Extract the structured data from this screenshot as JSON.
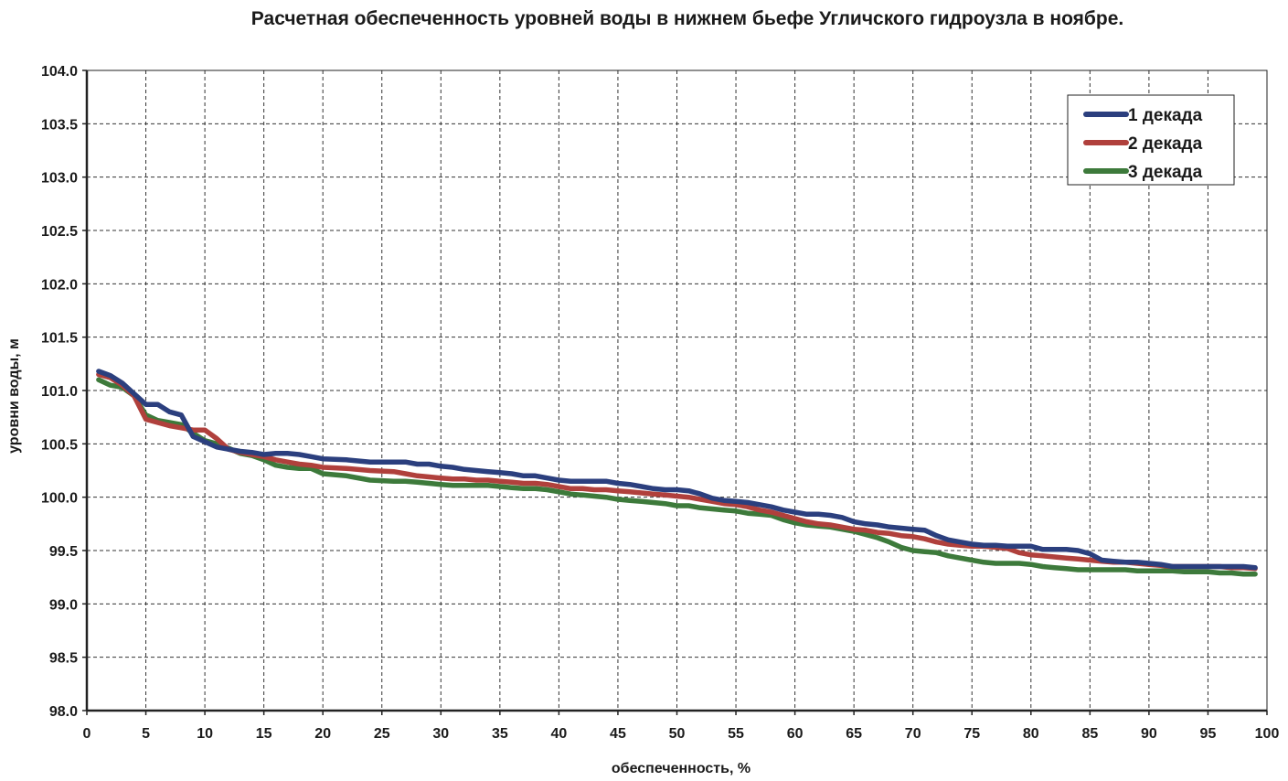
{
  "chart_data": {
    "type": "line",
    "title": "Расчетная обеспеченность уровней воды в нижнем бьефе Угличского гидроузла в ноябре.",
    "xlabel": "обеспеченность,  %",
    "ylabel": "уровни воды, м",
    "xlim": [
      0,
      100
    ],
    "ylim": [
      98.0,
      104.0
    ],
    "x_ticks": [
      "0",
      "5",
      "10",
      "15",
      "20",
      "25",
      "30",
      "35",
      "40",
      "45",
      "50",
      "55",
      "60",
      "65",
      "70",
      "75",
      "80",
      "85",
      "90",
      "95",
      "100"
    ],
    "y_ticks": [
      "98.0",
      "98.5",
      "99.0",
      "99.5",
      "100.0",
      "100.5",
      "101.0",
      "101.5",
      "102.0",
      "102.5",
      "103.0",
      "103.5",
      "104.0"
    ],
    "grid": true,
    "legend_position": "top-right",
    "series": [
      {
        "name": "1 декада",
        "color": "#2b3f7e",
        "x": [
          1,
          2,
          3,
          4,
          5,
          6,
          7,
          8,
          9,
          10,
          11,
          12,
          13,
          14,
          15,
          16,
          17,
          18,
          19,
          20,
          22,
          24,
          26,
          27,
          28,
          29,
          30,
          31,
          32,
          33,
          34,
          35,
          36,
          37,
          38,
          39,
          40,
          41,
          42,
          43,
          44,
          45,
          46,
          47,
          48,
          49,
          50,
          51,
          52,
          53,
          54,
          55,
          56,
          57,
          58,
          59,
          60,
          61,
          62,
          63,
          64,
          65,
          66,
          67,
          68,
          69,
          70,
          71,
          72,
          73,
          74,
          75,
          76,
          77,
          78,
          79,
          80,
          81,
          82,
          83,
          84,
          85,
          86,
          87,
          88,
          89,
          90,
          91,
          92,
          93,
          94,
          95,
          96,
          97,
          98,
          99
        ],
        "values": [
          101.18,
          101.14,
          101.07,
          100.97,
          100.87,
          100.87,
          100.8,
          100.77,
          100.57,
          100.52,
          100.47,
          100.45,
          100.43,
          100.42,
          100.4,
          100.41,
          100.41,
          100.4,
          100.38,
          100.36,
          100.35,
          100.33,
          100.33,
          100.33,
          100.31,
          100.31,
          100.29,
          100.28,
          100.26,
          100.25,
          100.24,
          100.23,
          100.22,
          100.2,
          100.2,
          100.18,
          100.16,
          100.15,
          100.15,
          100.15,
          100.15,
          100.13,
          100.12,
          100.1,
          100.08,
          100.07,
          100.07,
          100.06,
          100.03,
          99.99,
          99.97,
          99.96,
          99.95,
          99.93,
          99.91,
          99.88,
          99.86,
          99.84,
          99.84,
          99.83,
          99.81,
          99.77,
          99.75,
          99.74,
          99.72,
          99.71,
          99.7,
          99.69,
          99.64,
          99.6,
          99.58,
          99.56,
          99.55,
          99.55,
          99.54,
          99.54,
          99.54,
          99.51,
          99.51,
          99.51,
          99.5,
          99.47,
          99.41,
          99.4,
          99.39,
          99.39,
          99.38,
          99.37,
          99.35,
          99.35,
          99.35,
          99.35,
          99.35,
          99.35,
          99.35,
          99.34
        ]
      },
      {
        "name": "2 декада",
        "color": "#b0403c",
        "x": [
          1,
          2,
          3,
          4,
          5,
          6,
          7,
          8,
          9,
          10,
          11,
          12,
          13,
          14,
          15,
          16,
          17,
          18,
          19,
          20,
          22,
          24,
          26,
          27,
          28,
          29,
          30,
          31,
          32,
          33,
          34,
          35,
          36,
          37,
          38,
          39,
          40,
          41,
          42,
          43,
          44,
          45,
          46,
          47,
          48,
          49,
          50,
          51,
          52,
          53,
          54,
          55,
          56,
          57,
          58,
          59,
          60,
          61,
          62,
          63,
          64,
          65,
          66,
          67,
          68,
          69,
          70,
          71,
          72,
          73,
          74,
          75,
          76,
          77,
          78,
          79,
          80,
          81,
          82,
          83,
          84,
          85,
          86,
          87,
          88,
          89,
          90,
          91,
          92,
          93,
          94,
          95,
          96,
          97,
          98,
          99
        ],
        "values": [
          101.15,
          101.12,
          101.05,
          100.95,
          100.73,
          100.7,
          100.67,
          100.65,
          100.63,
          100.63,
          100.55,
          100.45,
          100.42,
          100.4,
          100.38,
          100.35,
          100.33,
          100.31,
          100.3,
          100.28,
          100.27,
          100.25,
          100.24,
          100.22,
          100.2,
          100.19,
          100.18,
          100.17,
          100.17,
          100.16,
          100.16,
          100.15,
          100.14,
          100.13,
          100.13,
          100.12,
          100.1,
          100.08,
          100.08,
          100.07,
          100.07,
          100.06,
          100.05,
          100.04,
          100.03,
          100.02,
          100.01,
          100.0,
          99.98,
          99.96,
          99.94,
          99.93,
          99.91,
          99.88,
          99.86,
          99.83,
          99.8,
          99.77,
          99.75,
          99.74,
          99.72,
          99.7,
          99.69,
          99.67,
          99.66,
          99.64,
          99.63,
          99.61,
          99.58,
          99.56,
          99.55,
          99.54,
          99.54,
          99.53,
          99.52,
          99.48,
          99.46,
          99.45,
          99.44,
          99.43,
          99.42,
          99.41,
          99.4,
          99.39,
          99.39,
          99.38,
          99.37,
          99.36,
          99.35,
          99.35,
          99.35,
          99.35,
          99.35,
          99.34,
          99.34,
          99.33
        ]
      },
      {
        "name": "3 декада",
        "color": "#3d7a3b",
        "x": [
          1,
          2,
          3,
          4,
          5,
          6,
          7,
          8,
          9,
          10,
          11,
          12,
          13,
          14,
          15,
          16,
          17,
          18,
          19,
          20,
          22,
          24,
          26,
          27,
          28,
          29,
          30,
          31,
          32,
          33,
          34,
          35,
          36,
          37,
          38,
          39,
          40,
          41,
          42,
          43,
          44,
          45,
          46,
          47,
          48,
          49,
          50,
          51,
          52,
          53,
          54,
          55,
          56,
          57,
          58,
          59,
          60,
          61,
          62,
          63,
          64,
          65,
          66,
          67,
          68,
          69,
          70,
          71,
          72,
          73,
          74,
          75,
          76,
          77,
          78,
          79,
          80,
          81,
          82,
          83,
          84,
          85,
          86,
          87,
          88,
          89,
          90,
          91,
          92,
          93,
          94,
          95,
          96,
          97,
          98,
          99
        ],
        "values": [
          101.1,
          101.05,
          101.03,
          100.95,
          100.77,
          100.72,
          100.7,
          100.68,
          100.6,
          100.53,
          100.5,
          100.46,
          100.41,
          100.39,
          100.35,
          100.3,
          100.28,
          100.27,
          100.27,
          100.22,
          100.2,
          100.16,
          100.15,
          100.15,
          100.14,
          100.13,
          100.12,
          100.11,
          100.11,
          100.11,
          100.11,
          100.1,
          100.09,
          100.08,
          100.08,
          100.07,
          100.05,
          100.03,
          100.02,
          100.01,
          100.0,
          99.98,
          99.97,
          99.96,
          99.95,
          99.94,
          99.92,
          99.92,
          99.9,
          99.89,
          99.88,
          99.87,
          99.85,
          99.84,
          99.83,
          99.79,
          99.76,
          99.74,
          99.73,
          99.72,
          99.7,
          99.68,
          99.65,
          99.62,
          99.58,
          99.53,
          99.5,
          99.49,
          99.48,
          99.45,
          99.43,
          99.41,
          99.39,
          99.38,
          99.38,
          99.38,
          99.37,
          99.35,
          99.34,
          99.33,
          99.32,
          99.32,
          99.32,
          99.32,
          99.32,
          99.31,
          99.31,
          99.31,
          99.31,
          99.3,
          99.3,
          99.3,
          99.29,
          99.29,
          99.28,
          99.28
        ]
      }
    ]
  }
}
